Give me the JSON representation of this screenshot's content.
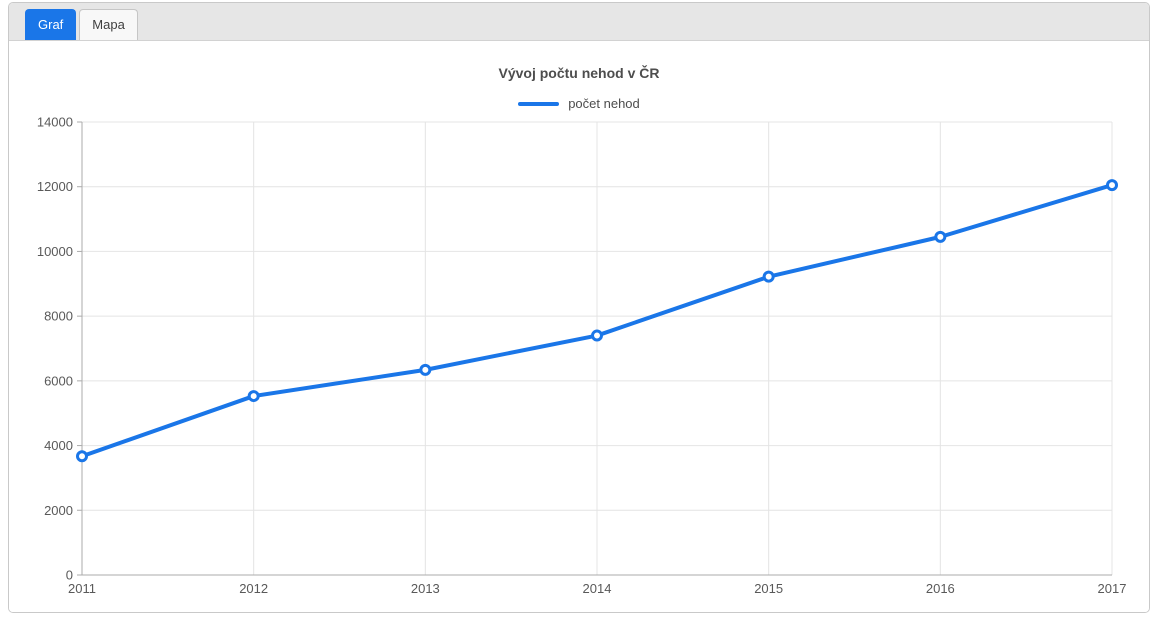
{
  "tabs": [
    {
      "label": "Graf",
      "active": true
    },
    {
      "label": "Mapa",
      "active": false
    }
  ],
  "chart_data": {
    "type": "line",
    "title": "Vývoj počtu nehod v ČR",
    "categories": [
      "2011",
      "2012",
      "2013",
      "2014",
      "2015",
      "2016",
      "2017"
    ],
    "series": [
      {
        "name": "počet nehod",
        "color": "#1a76e8",
        "values": [
          3670,
          5530,
          6340,
          7400,
          9220,
          10450,
          12050
        ]
      }
    ],
    "ylim": [
      0,
      14000
    ],
    "y_ticks": [
      0,
      2000,
      4000,
      6000,
      8000,
      10000,
      12000,
      14000
    ],
    "xlabel": "",
    "ylabel": "",
    "grid": true,
    "legend_position": "top",
    "marker": "circle-hollow"
  },
  "colors": {
    "accent": "#1a76e8",
    "gridline": "#e4e4e4",
    "axis_line": "#ababab",
    "axis_label": "#595959",
    "tab_strip_bg": "#e6e6e6",
    "card_border": "#c9c9c9"
  }
}
